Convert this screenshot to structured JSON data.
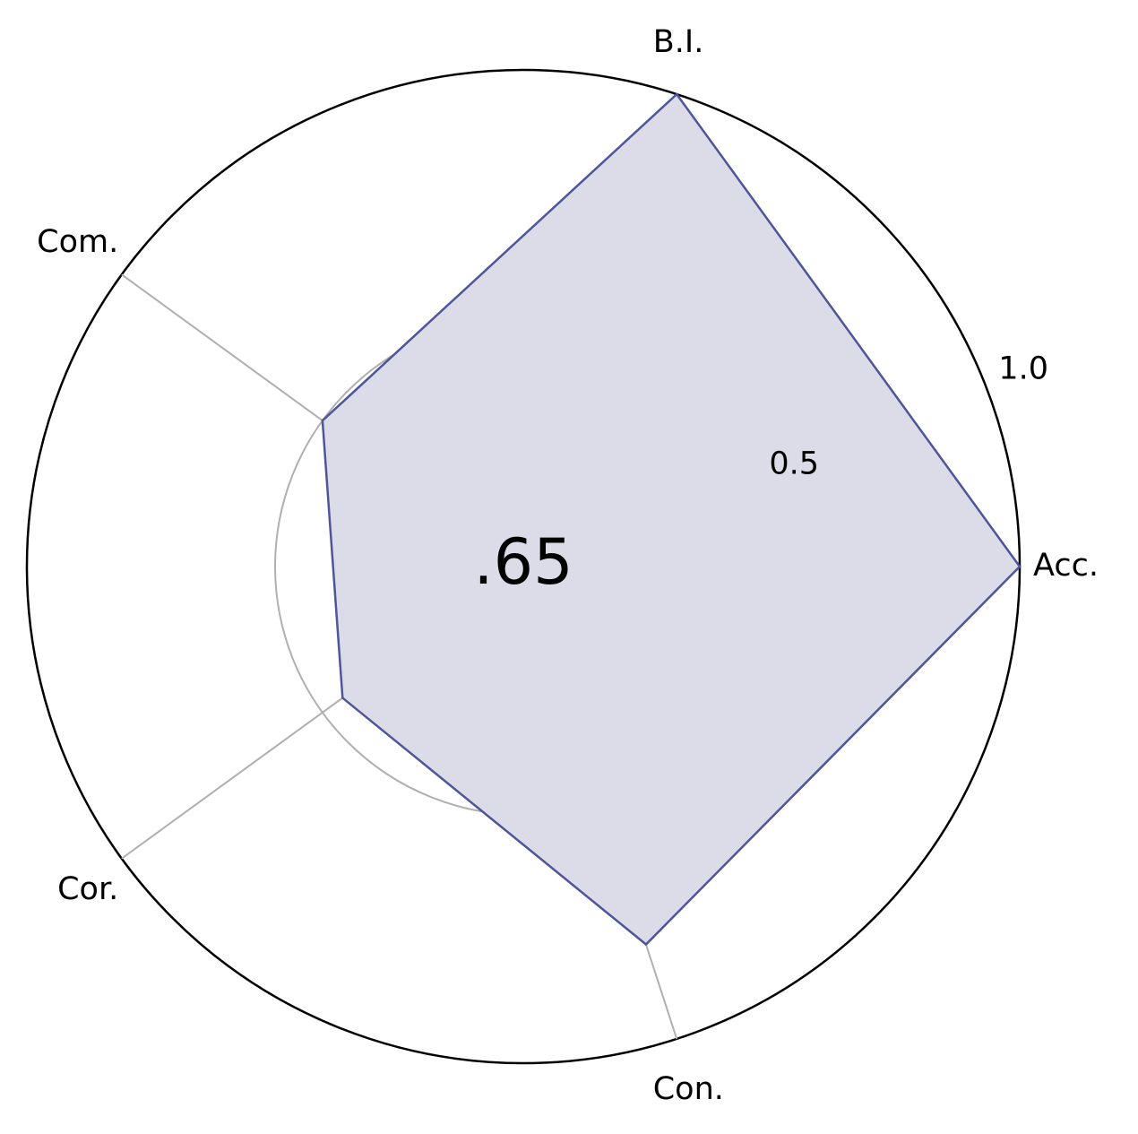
{
  "chart_data": {
    "type": "radar",
    "title": "",
    "axes": [
      "Acc.",
      "B.I.",
      "Com.",
      "Cor.",
      "Con."
    ],
    "series": [
      {
        "values": [
          1.0,
          1.0,
          0.5,
          0.45,
          0.8
        ]
      }
    ],
    "rlim": [
      0,
      1.0
    ],
    "r_ticks": [
      "0.5",
      "1.0"
    ],
    "center_label": ".65",
    "grid": true,
    "colors": {
      "line": "#4f5599",
      "fill": "#dcdce8",
      "grid": "#b0b0b0",
      "frame": "#000000"
    }
  }
}
